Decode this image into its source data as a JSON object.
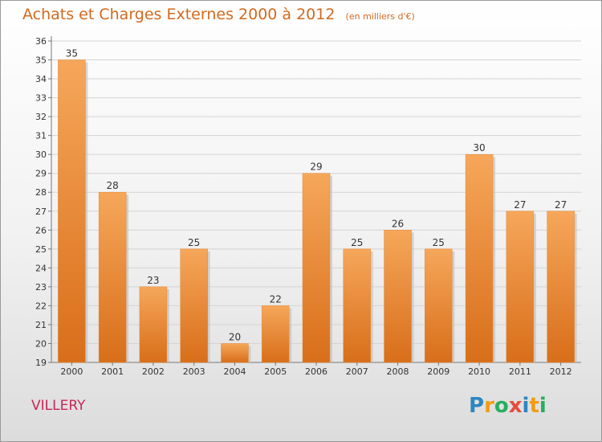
{
  "title": "Achats et Charges Externes 2000 à 2012",
  "unit": "(en milliers d'€)",
  "commune": "VILLERY",
  "logo": {
    "letters": [
      "P",
      "r",
      "o",
      "x",
      "i",
      "t",
      "i"
    ],
    "colors": [
      "#2e86c1",
      "#f39c12",
      "#27ae60",
      "#e74c3c",
      "#2e86c1",
      "#f39c12",
      "#27ae60"
    ]
  },
  "colors": {
    "bar_top": "#f6a75a",
    "bar_bottom": "#d86e1a",
    "title": "#d2691e",
    "commune": "#c8275a"
  },
  "chart_data": {
    "type": "bar",
    "categories": [
      "2000",
      "2001",
      "2002",
      "2003",
      "2004",
      "2005",
      "2006",
      "2007",
      "2008",
      "2009",
      "2010",
      "2011",
      "2012"
    ],
    "values": [
      35,
      28,
      23,
      25,
      20,
      22,
      29,
      25,
      26,
      25,
      30,
      27,
      27
    ],
    "ylim": [
      19,
      36
    ],
    "yticks": [
      19,
      20,
      21,
      22,
      23,
      24,
      25,
      26,
      27,
      28,
      29,
      30,
      31,
      32,
      33,
      34,
      35,
      36
    ],
    "grid": true,
    "legend": "none"
  }
}
